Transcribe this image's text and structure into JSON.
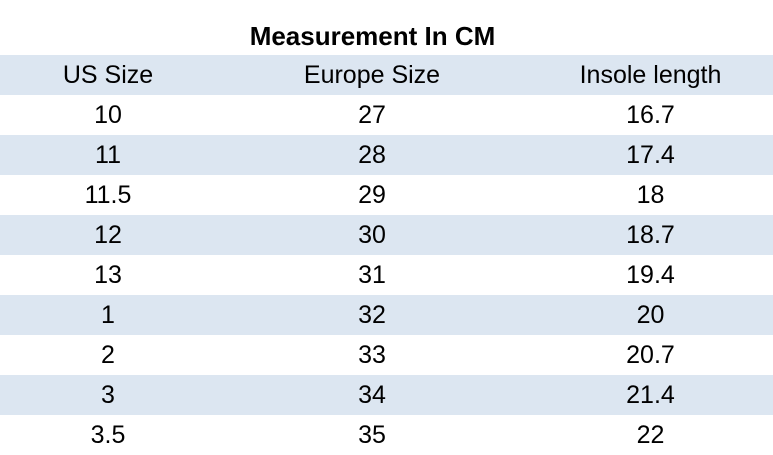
{
  "title": "Measurement In CM",
  "colors": {
    "stripe": "#dce6f1",
    "background": "#ffffff",
    "text": "#000000"
  },
  "chart_data": {
    "type": "table",
    "title": "Measurement In CM",
    "columns": [
      "US Size",
      "Europe Size",
      "Insole length"
    ],
    "rows": [
      [
        "10",
        "27",
        "16.7"
      ],
      [
        "11",
        "28",
        "17.4"
      ],
      [
        "11.5",
        "29",
        "18"
      ],
      [
        "12",
        "30",
        "18.7"
      ],
      [
        "13",
        "31",
        "19.4"
      ],
      [
        "1",
        "32",
        "20"
      ],
      [
        "2",
        "33",
        "20.7"
      ],
      [
        "3",
        "34",
        "21.4"
      ],
      [
        "3.5",
        "35",
        "22"
      ]
    ]
  }
}
